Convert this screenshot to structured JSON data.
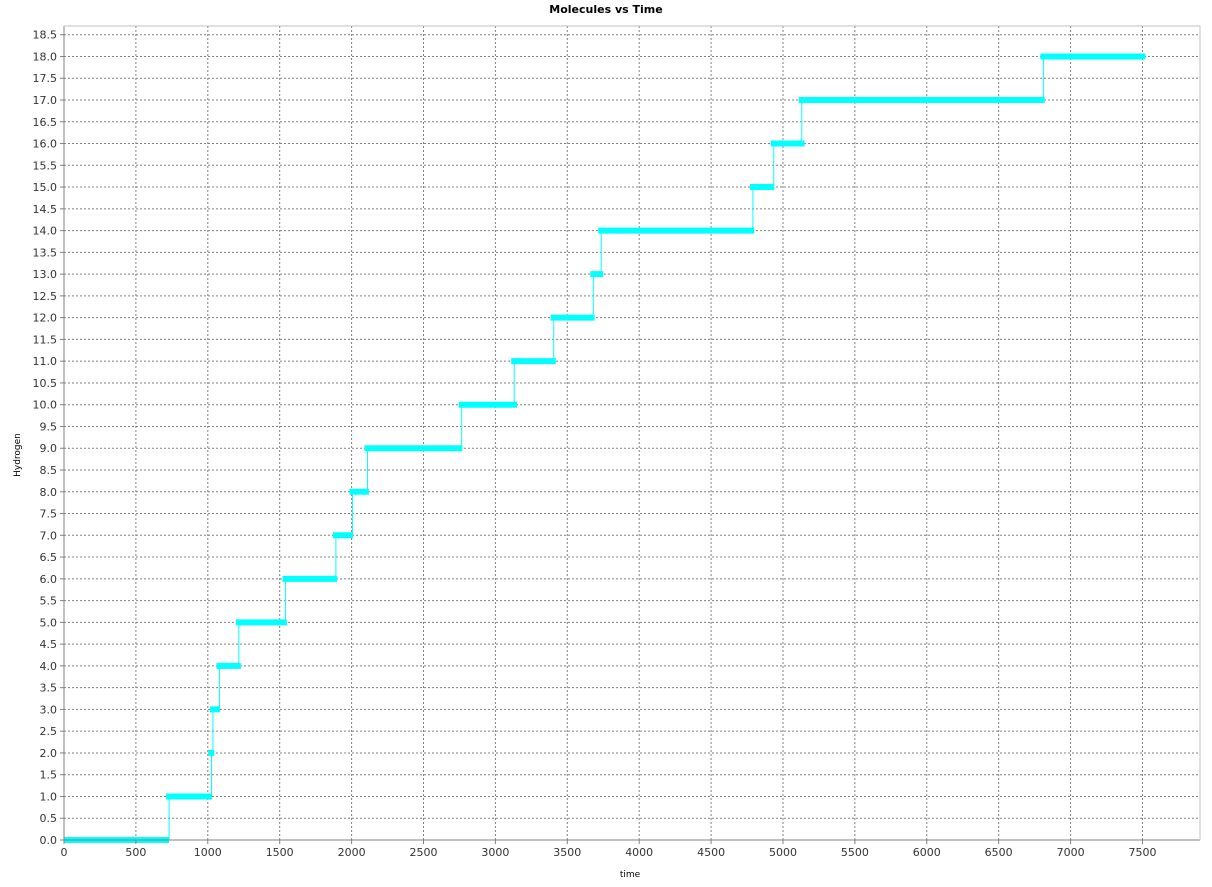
{
  "chart_data": {
    "type": "line",
    "title": "Molecules vs Time",
    "xlabel": "time",
    "ylabel": "Hydrogen",
    "xlim": [
      0,
      7900
    ],
    "ylim": [
      0,
      18.7
    ],
    "grid": true,
    "xticks": [
      0,
      500,
      1000,
      1500,
      2000,
      2500,
      3000,
      3500,
      4000,
      4500,
      5000,
      5500,
      6000,
      6500,
      7000,
      7500
    ],
    "yticks": [
      0.0,
      0.5,
      1.0,
      1.5,
      2.0,
      2.5,
      3.0,
      3.5,
      4.0,
      4.5,
      5.0,
      5.5,
      6.0,
      6.5,
      7.0,
      7.5,
      8.0,
      8.5,
      9.0,
      9.5,
      10.0,
      10.5,
      11.0,
      11.5,
      12.0,
      12.5,
      13.0,
      13.5,
      14.0,
      14.5,
      15.0,
      15.5,
      16.0,
      16.5,
      17.0,
      17.5,
      18.0,
      18.5
    ],
    "series": [
      {
        "color": "#00ffff",
        "steps": [
          {
            "x0": 0,
            "x1": 730,
            "y": 0
          },
          {
            "x0": 710,
            "x1": 1030,
            "y": 1
          },
          {
            "x0": 1005,
            "x1": 1045,
            "y": 2
          },
          {
            "x0": 1015,
            "x1": 1085,
            "y": 3
          },
          {
            "x0": 1060,
            "x1": 1230,
            "y": 4
          },
          {
            "x0": 1195,
            "x1": 1550,
            "y": 5
          },
          {
            "x0": 1520,
            "x1": 1900,
            "y": 6
          },
          {
            "x0": 1870,
            "x1": 2010,
            "y": 7
          },
          {
            "x0": 1985,
            "x1": 2120,
            "y": 8
          },
          {
            "x0": 2090,
            "x1": 2770,
            "y": 9
          },
          {
            "x0": 2745,
            "x1": 3150,
            "y": 10
          },
          {
            "x0": 3110,
            "x1": 3420,
            "y": 11
          },
          {
            "x0": 3385,
            "x1": 3690,
            "y": 12
          },
          {
            "x0": 3660,
            "x1": 3750,
            "y": 13
          },
          {
            "x0": 3715,
            "x1": 4800,
            "y": 14
          },
          {
            "x0": 4770,
            "x1": 4940,
            "y": 15
          },
          {
            "x0": 4915,
            "x1": 5150,
            "y": 16
          },
          {
            "x0": 5110,
            "x1": 6820,
            "y": 17
          },
          {
            "x0": 6790,
            "x1": 7520,
            "y": 18
          }
        ]
      }
    ]
  }
}
